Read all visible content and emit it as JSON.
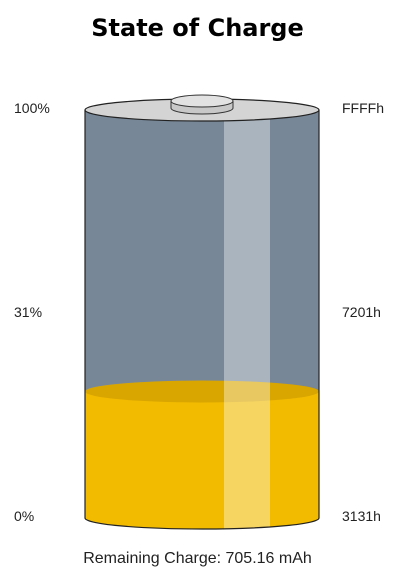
{
  "title": "State of Charge",
  "scale": {
    "left": {
      "top": "100%",
      "mid": "31%",
      "bottom": "0%"
    },
    "right": {
      "top": "FFFFh",
      "mid": "7201h",
      "bottom": "3131h"
    }
  },
  "battery": {
    "charge_fraction": 0.31,
    "colors": {
      "empty": "#778797",
      "fill": "#f2bb00",
      "cap": "#d4d4d4",
      "outline": "#222222"
    }
  },
  "footer": {
    "remaining_charge": "Remaining Charge: 705.16 mAh"
  }
}
